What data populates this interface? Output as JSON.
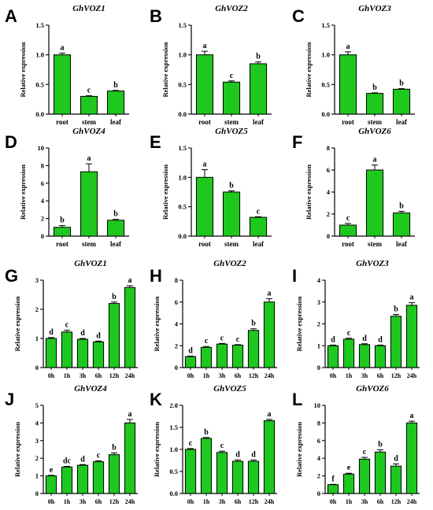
{
  "colors": {
    "bar": "#1ec81e",
    "edge": "#000000"
  },
  "chart_data": [
    {
      "letter": "A",
      "title": "GhVOZ1",
      "type": "bar",
      "ylabel": "Relative expression",
      "categories": [
        "root",
        "stem",
        "leaf"
      ],
      "values": [
        1.0,
        0.3,
        0.39
      ],
      "errors": [
        0.03,
        0.01,
        0.01
      ],
      "sig": [
        "a",
        "c",
        "b"
      ],
      "yticks": [
        "0.0",
        "0.5",
        "1.0",
        "1.5"
      ],
      "ylim": [
        0,
        1.5
      ]
    },
    {
      "letter": "B",
      "title": "GhVOZ2",
      "type": "bar",
      "ylabel": "Relative expression",
      "categories": [
        "root",
        "stem",
        "leaf"
      ],
      "values": [
        1.0,
        0.54,
        0.85
      ],
      "errors": [
        0.06,
        0.02,
        0.03
      ],
      "sig": [
        "a",
        "c",
        "b"
      ],
      "yticks": [
        "0.0",
        "0.5",
        "1.0",
        "1.5"
      ],
      "ylim": [
        0,
        1.5
      ]
    },
    {
      "letter": "C",
      "title": "GhVOZ3",
      "type": "bar",
      "ylabel": "Relative expression",
      "categories": [
        "root",
        "stem",
        "leaf"
      ],
      "values": [
        1.0,
        0.35,
        0.42
      ],
      "errors": [
        0.05,
        0.01,
        0.01
      ],
      "sig": [
        "a",
        "b",
        "b"
      ],
      "yticks": [
        "0.0",
        "0.5",
        "1.0",
        "1.5"
      ],
      "ylim": [
        0,
        1.5
      ]
    },
    {
      "letter": "D",
      "title": "GhVOZ4",
      "type": "bar",
      "ylabel": "Relative expression",
      "categories": [
        "root",
        "stem",
        "leaf"
      ],
      "values": [
        1.0,
        7.3,
        1.8
      ],
      "errors": [
        0.2,
        0.9,
        0.1
      ],
      "sig": [
        "b",
        "a",
        "b"
      ],
      "yticks": [
        "0",
        "2",
        "4",
        "6",
        "8",
        "10"
      ],
      "ylim": [
        0,
        10
      ]
    },
    {
      "letter": "E",
      "title": "GhVOZ5",
      "type": "bar",
      "ylabel": "Relative expression",
      "categories": [
        "root",
        "stem",
        "leaf"
      ],
      "values": [
        1.0,
        0.75,
        0.32
      ],
      "errors": [
        0.13,
        0.02,
        0.01
      ],
      "sig": [
        "a",
        "b",
        "c"
      ],
      "yticks": [
        "0.0",
        "0.5",
        "1.0",
        "1.5"
      ],
      "ylim": [
        0,
        1.5
      ]
    },
    {
      "letter": "F",
      "title": "GhVOZ6",
      "type": "bar",
      "ylabel": "Relative expression",
      "categories": [
        "root",
        "stem",
        "leaf"
      ],
      "values": [
        1.0,
        6.0,
        2.1
      ],
      "errors": [
        0.15,
        0.45,
        0.15
      ],
      "sig": [
        "c",
        "a",
        "b"
      ],
      "yticks": [
        "0",
        "2",
        "4",
        "6",
        "8"
      ],
      "ylim": [
        0,
        8
      ]
    },
    {
      "letter": "G",
      "title": "GhVOZ1",
      "type": "bar",
      "ylabel": "Relative expression",
      "categories": [
        "0h",
        "1h",
        "3h",
        "6h",
        "12h",
        "24h"
      ],
      "values": [
        1.0,
        1.22,
        0.97,
        0.88,
        2.2,
        2.75
      ],
      "errors": [
        0.03,
        0.06,
        0.03,
        0.03,
        0.05,
        0.06
      ],
      "sig": [
        "d",
        "c",
        "d",
        "d",
        "b",
        "a"
      ],
      "yticks": [
        "0",
        "1",
        "2",
        "3"
      ],
      "ylim": [
        0,
        3
      ]
    },
    {
      "letter": "H",
      "title": "GhVOZ2",
      "type": "bar",
      "ylabel": "Relative expression",
      "categories": [
        "0h",
        "1h",
        "3h",
        "6h",
        "12h",
        "24h"
      ],
      "values": [
        1.0,
        1.85,
        2.15,
        2.05,
        3.4,
        6.0
      ],
      "errors": [
        0.05,
        0.08,
        0.06,
        0.05,
        0.15,
        0.3
      ],
      "sig": [
        "d",
        "c",
        "c",
        "c",
        "b",
        "a"
      ],
      "yticks": [
        "0",
        "2",
        "4",
        "6",
        "8"
      ],
      "ylim": [
        0,
        8
      ]
    },
    {
      "letter": "I",
      "title": "GhVOZ3",
      "type": "bar",
      "ylabel": "Relative expression",
      "categories": [
        "0h",
        "1h",
        "3h",
        "6h",
        "12h",
        "24h"
      ],
      "values": [
        1.0,
        1.3,
        1.05,
        1.0,
        2.35,
        2.85
      ],
      "errors": [
        0.03,
        0.04,
        0.04,
        0.03,
        0.08,
        0.12
      ],
      "sig": [
        "d",
        "c",
        "d",
        "d",
        "b",
        "a"
      ],
      "yticks": [
        "0",
        "1",
        "2",
        "3",
        "4"
      ],
      "ylim": [
        0,
        4
      ]
    },
    {
      "letter": "J",
      "title": "GhVOZ4",
      "type": "bar",
      "ylabel": "Relative expression",
      "categories": [
        "0h",
        "1h",
        "3h",
        "6h",
        "12h",
        "24h"
      ],
      "values": [
        1.0,
        1.5,
        1.6,
        1.8,
        2.2,
        4.0
      ],
      "errors": [
        0.03,
        0.04,
        0.04,
        0.05,
        0.1,
        0.2
      ],
      "sig": [
        "e",
        "dc",
        "d",
        "c",
        "b",
        "a"
      ],
      "yticks": [
        "0",
        "1",
        "2",
        "3",
        "4",
        "5"
      ],
      "ylim": [
        0,
        5
      ]
    },
    {
      "letter": "K",
      "title": "GhVOZ5",
      "type": "bar",
      "ylabel": "Relative expression",
      "categories": [
        "0h",
        "1h",
        "3h",
        "6h",
        "12h",
        "24h"
      ],
      "values": [
        1.0,
        1.25,
        0.93,
        0.73,
        0.73,
        1.65
      ],
      "errors": [
        0.02,
        0.02,
        0.03,
        0.03,
        0.03,
        0.03
      ],
      "sig": [
        "c",
        "b",
        "c",
        "d",
        "d",
        "a"
      ],
      "yticks": [
        "0.0",
        "0.5",
        "1.0",
        "1.5",
        "2.0"
      ],
      "ylim": [
        0,
        2
      ]
    },
    {
      "letter": "L",
      "title": "GhVOZ6",
      "type": "bar",
      "ylabel": "Relative expression",
      "categories": [
        "0h",
        "1h",
        "3h",
        "6h",
        "12h",
        "24h"
      ],
      "values": [
        1.0,
        2.2,
        3.9,
        4.7,
        3.1,
        8.0
      ],
      "errors": [
        0.04,
        0.1,
        0.2,
        0.25,
        0.25,
        0.2
      ],
      "sig": [
        "f",
        "e",
        "c",
        "b",
        "d",
        "a"
      ],
      "yticks": [
        "0",
        "2",
        "4",
        "6",
        "8",
        "10"
      ],
      "ylim": [
        0,
        10
      ]
    }
  ]
}
